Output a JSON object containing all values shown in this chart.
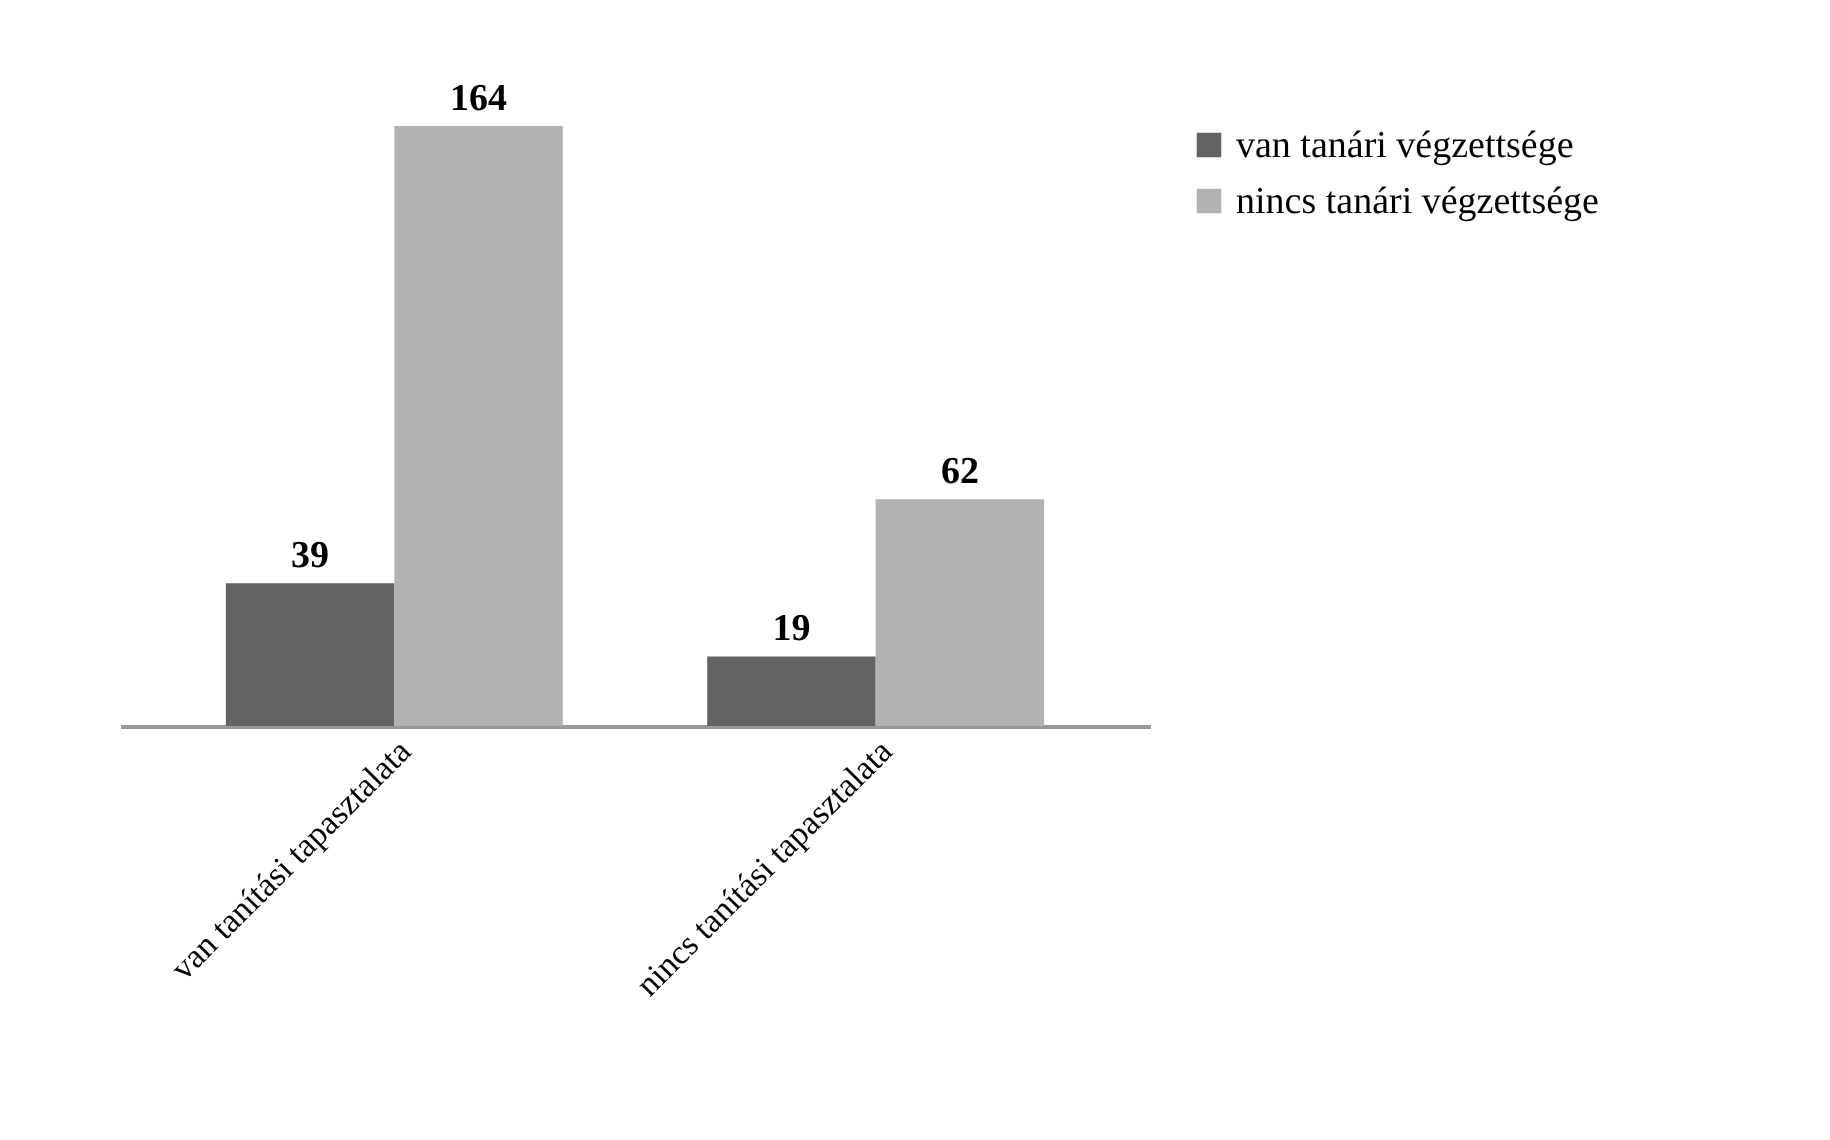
{
  "chart_data": {
    "type": "bar",
    "categories": [
      "van tanítási tapasztalata",
      "nincs tanítási tapasztalata"
    ],
    "series": [
      {
        "name": "van tanári végzettsége",
        "color": "#636363",
        "values": [
          39,
          19
        ]
      },
      {
        "name": "nincs tanári végzettsége",
        "color": "#b2b2b2",
        "values": [
          164,
          62
        ]
      }
    ],
    "data_labels": true,
    "legend": "right",
    "grid": false
  }
}
